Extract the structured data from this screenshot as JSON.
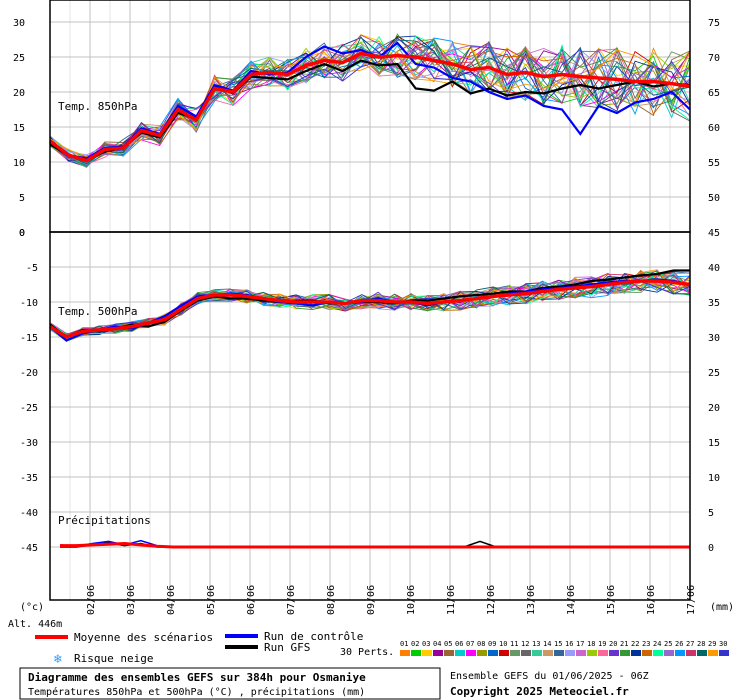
{
  "chart_data": [
    {
      "type": "line",
      "title": "Temp. 850hPa",
      "yticks_left": [
        0,
        5,
        10,
        15,
        20,
        25,
        30
      ],
      "yticks_right": [
        50,
        55,
        60,
        65,
        70,
        75
      ],
      "ylim": [
        0,
        32
      ],
      "series": [
        {
          "name": "Moyenne des scénarios",
          "color": "#ff0000",
          "values": [
            13,
            11,
            10.2,
            11.8,
            12,
            14.5,
            13.8,
            17.5,
            16,
            20.5,
            20,
            22.5,
            22.8,
            22.5,
            23.8,
            24.5,
            24.2,
            25.5,
            25,
            25.2,
            25,
            24.5,
            24,
            23.2,
            23.5,
            22.5,
            22.8,
            22.2,
            22.5,
            22.2,
            22,
            21.8,
            21.5,
            21.5,
            21.2,
            20.8
          ]
        },
        {
          "name": "Run de contrôle",
          "color": "#0000ff",
          "values": [
            13,
            11,
            10.5,
            12,
            12.2,
            14.8,
            14,
            18,
            16.5,
            21,
            20.2,
            23,
            22.5,
            22.8,
            25,
            26.5,
            25.5,
            26,
            25,
            27,
            24,
            23.5,
            22,
            21.5,
            20,
            19,
            19.5,
            18,
            17.5,
            14,
            18,
            17,
            18.5,
            19,
            20,
            17.5
          ]
        },
        {
          "name": "Run GFS",
          "color": "#000000",
          "values": [
            12.5,
            11,
            10.3,
            11.5,
            12,
            14.2,
            13.5,
            17,
            16.2,
            20.8,
            19.8,
            22.2,
            22,
            21.8,
            23,
            24,
            23,
            24.5,
            23.8,
            24,
            20.5,
            20.2,
            21.5,
            19.8,
            20.5,
            19.5,
            20,
            19.8,
            20.5,
            21,
            20.5,
            21,
            21.5,
            20.8,
            21.2,
            21
          ]
        }
      ]
    },
    {
      "type": "line",
      "title": "Temp. 500hPa",
      "yticks_left": [
        -5,
        -10,
        -15,
        -20,
        -25,
        -30,
        -35,
        -40,
        -45
      ],
      "yticks_right": [
        45,
        40,
        35,
        30,
        25,
        20,
        15,
        10,
        5,
        0
      ],
      "ylim": [
        -50,
        0
      ],
      "series": [
        {
          "name": "Moyenne des scénarios",
          "color": "#ff0000",
          "values": [
            -13.5,
            -15,
            -14.2,
            -14,
            -13.8,
            -13.5,
            -13,
            -12.5,
            -11,
            -9.5,
            -9,
            -9,
            -9.2,
            -9.5,
            -9.8,
            -10,
            -10,
            -10,
            -10.2,
            -9.8,
            -9.8,
            -10,
            -10,
            -10.2,
            -10,
            -9.8,
            -9.5,
            -9.2,
            -9,
            -8.8,
            -8.5,
            -8.2,
            -8,
            -7.8,
            -7.5,
            -7.2,
            -7,
            -7,
            -7.2,
            -7.5
          ]
        },
        {
          "name": "Run de contrôle",
          "color": "#0000ff",
          "values": [
            -13.5,
            -15.5,
            -14.5,
            -14,
            -13.5,
            -13.8,
            -13,
            -12,
            -10.5,
            -9.2,
            -9,
            -8.8,
            -9,
            -9.5,
            -10,
            -10.2,
            -10.5,
            -10,
            -10.2,
            -10,
            -9.5,
            -10,
            -10,
            -10.5,
            -10,
            -9.8,
            -9.5,
            -9.2,
            -8.8,
            -8.5,
            -8.2,
            -8,
            -7.8,
            -7.5,
            -7.2,
            -7,
            -7,
            -6.8,
            -7,
            -7.5
          ]
        },
        {
          "name": "Run GFS",
          "color": "#000000",
          "values": [
            -13.2,
            -15,
            -14,
            -14.2,
            -13.8,
            -13.2,
            -13.5,
            -12.8,
            -11.2,
            -9.8,
            -9.2,
            -9.5,
            -9.5,
            -9.8,
            -10,
            -9.8,
            -9.8,
            -10.2,
            -10.2,
            -10,
            -10,
            -10.2,
            -9.8,
            -9.8,
            -9.5,
            -9.2,
            -9,
            -8.8,
            -8.5,
            -8.5,
            -8,
            -7.8,
            -7.5,
            -7,
            -6.8,
            -6.5,
            -6.2,
            -6,
            -5.5,
            -5.5
          ]
        }
      ],
      "precipitation": {
        "label": "Précipitations",
        "unit": "mm",
        "ylim": [
          0,
          5
        ],
        "mean": [
          0.2,
          0.2,
          0.3,
          0.4,
          0.5,
          0.3,
          0.1,
          0,
          0,
          0,
          0,
          0,
          0,
          0,
          0,
          0,
          0,
          0,
          0,
          0,
          0,
          0,
          0,
          0,
          0,
          0,
          0,
          0,
          0,
          0,
          0,
          0,
          0,
          0,
          0,
          0,
          0,
          0,
          0,
          0
        ],
        "control": [
          0.3,
          0.1,
          0.5,
          0.8,
          0.3,
          0.9,
          0.2,
          0,
          0,
          0,
          0,
          0,
          0,
          0,
          0,
          0,
          0,
          0,
          0,
          0,
          0,
          0,
          0,
          0,
          0,
          0,
          0,
          0,
          0,
          0,
          0,
          0,
          0,
          0,
          0,
          0,
          0,
          0,
          0,
          0
        ],
        "gfs": [
          0,
          0,
          0.3,
          0.6,
          0.2,
          0.5,
          0,
          0,
          0,
          0,
          0,
          0,
          0,
          0,
          0,
          0,
          0,
          0,
          0,
          0,
          0,
          0,
          0,
          0,
          0,
          0,
          0.8,
          0,
          0,
          0,
          0,
          0,
          0,
          0,
          0,
          0,
          0,
          0,
          0,
          0
        ]
      }
    }
  ],
  "x_labels": [
    "02/06",
    "03/06",
    "04/06",
    "05/06",
    "06/06",
    "07/06",
    "08/06",
    "09/06",
    "10/06",
    "11/06",
    "12/06",
    "13/06",
    "14/06",
    "15/06",
    "16/06",
    "17/06"
  ],
  "axis_unit_left": "(°c)",
  "axis_unit_right": "(mm)",
  "altitude": "Alt. 446m",
  "legend": {
    "mean": "Moyenne des scénarios",
    "control": "Run de contrôle",
    "gfs": "Run GFS",
    "snow": "Risque neige",
    "perts_label": "30 Perts.",
    "perts": [
      "01",
      "02",
      "03",
      "04",
      "05",
      "06",
      "07",
      "08",
      "09",
      "10",
      "11",
      "12",
      "13",
      "14",
      "15",
      "16",
      "17",
      "18",
      "19",
      "20",
      "21",
      "22",
      "23",
      "24",
      "25",
      "26",
      "27",
      "28",
      "29",
      "30"
    ]
  },
  "title_box": {
    "line1": "Diagramme des ensembles GEFS sur 384h pour Osmaniye",
    "line2": "Températures 850hPa et 500hPa (°C) , précipitations (mm)"
  },
  "info": {
    "run": "Ensemble GEFS du 01/06/2025 - 06Z",
    "copyright": "Copyright 2025 Meteociel.fr"
  },
  "colors": {
    "mean": "#ff0000",
    "control": "#0000ff",
    "gfs": "#000000",
    "grid": "#c0c0c0",
    "snow": "#3399ff",
    "perts": [
      "#ff7f00",
      "#00cc00",
      "#ffcc00",
      "#990099",
      "#996633",
      "#00cccc",
      "#ff00ff",
      "#999900",
      "#0066cc",
      "#cc0000",
      "#669966",
      "#666666",
      "#33cc99",
      "#cc9966",
      "#336699",
      "#9999ff",
      "#cc66cc",
      "#99cc00",
      "#ff6699",
      "#6633cc",
      "#339933",
      "#003399",
      "#cc6600",
      "#00ff99",
      "#9966cc",
      "#0099ff",
      "#cc3366",
      "#006666",
      "#ff9900",
      "#3333cc"
    ]
  }
}
